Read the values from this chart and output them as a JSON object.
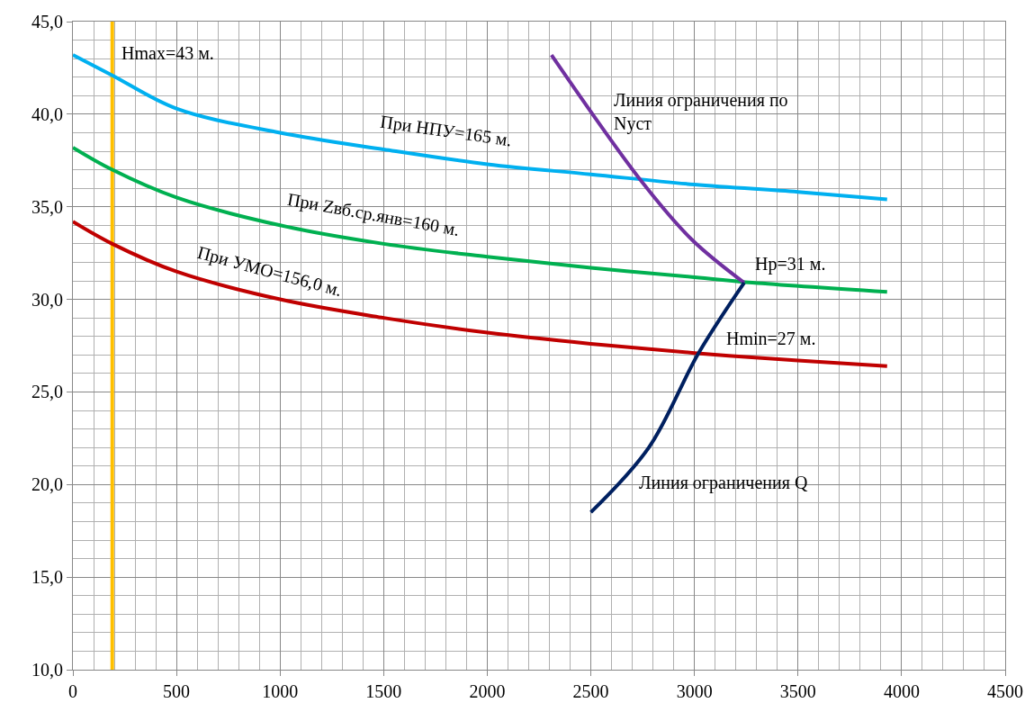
{
  "chart_data": {
    "type": "line",
    "xlim": [
      0,
      4500
    ],
    "ylim": [
      10,
      45
    ],
    "xticks": [
      0,
      500,
      1000,
      1500,
      2000,
      2500,
      3000,
      3500,
      4000,
      4500
    ],
    "yticks": [
      {
        "value": 10,
        "label": "10,0"
      },
      {
        "value": 15,
        "label": "15,0"
      },
      {
        "value": 20,
        "label": "20,0"
      },
      {
        "value": 25,
        "label": "25,0"
      },
      {
        "value": 30,
        "label": "30,0"
      },
      {
        "value": 35,
        "label": "35,0"
      },
      {
        "value": 40,
        "label": "40,0"
      },
      {
        "value": 45,
        "label": "45,0"
      }
    ],
    "grid": true,
    "legend": false,
    "marker": "none",
    "line_style": "solid",
    "series": [
      {
        "name": "При НПУ=165 м.",
        "color": "#00b0f0",
        "x": [
          0,
          190,
          500,
          1000,
          1500,
          2000,
          2500,
          3000,
          3500,
          3930
        ],
        "values": [
          43.2,
          42.1,
          40.3,
          39.0,
          38.1,
          37.3,
          36.75,
          36.2,
          35.8,
          35.4
        ]
      },
      {
        "name": "При Zвб.ср.янв=160 м.",
        "color": "#00b050",
        "x": [
          0,
          190,
          500,
          1000,
          1500,
          2000,
          2500,
          3000,
          3280,
          3930
        ],
        "values": [
          38.2,
          37.0,
          35.5,
          34.0,
          33.0,
          32.3,
          31.7,
          31.2,
          30.9,
          30.4
        ]
      },
      {
        "name": "При УМО=156,0 м.",
        "color": "#c00000",
        "x": [
          0,
          190,
          500,
          1000,
          1500,
          2000,
          2500,
          3000,
          3500,
          3930
        ],
        "values": [
          34.2,
          33.0,
          31.5,
          30.0,
          29.0,
          28.2,
          27.6,
          27.1,
          26.7,
          26.4
        ]
      },
      {
        "name": "Линия ограничения по Nуст",
        "color": "#7030a0",
        "x": [
          2310,
          2750,
          2990,
          3240
        ],
        "values": [
          43.2,
          36.3,
          33.2,
          30.9
        ]
      },
      {
        "name": "Линия ограничения Q",
        "color": "#002060",
        "x": [
          2500,
          2780,
          3020,
          3240
        ],
        "values": [
          18.5,
          22.0,
          27.1,
          30.9
        ]
      }
    ],
    "ref_lines": [
      {
        "axis": "x",
        "value": 190,
        "color": "#ffc000"
      }
    ],
    "annotations": [
      "Hmax=43 м.",
      {
        "text": "Hp=31 м.",
        "x": 3240,
        "y": 31
      },
      {
        "text": "Hmin=27 м.",
        "x": 3100,
        "y": 27
      }
    ]
  }
}
